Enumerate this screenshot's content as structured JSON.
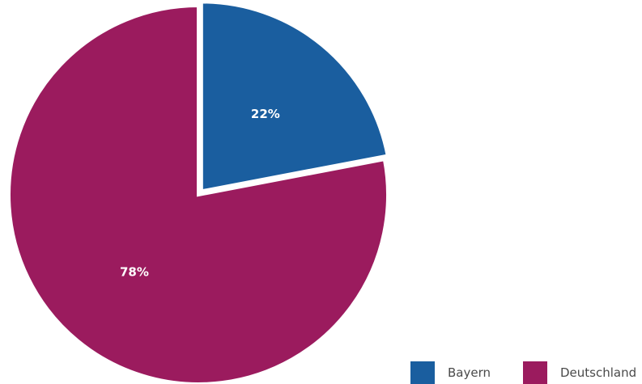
{
  "chart_data": {
    "type": "pie",
    "slices": [
      {
        "name": "Bayern",
        "value": 22,
        "label": "22%",
        "color": "#1a5e9f",
        "exploded": true
      },
      {
        "name": "Deutschland",
        "value": 78,
        "label": "78%",
        "color": "#9b1b5e",
        "exploded": false
      }
    ],
    "legend": {
      "placement": "bottom-right"
    }
  }
}
